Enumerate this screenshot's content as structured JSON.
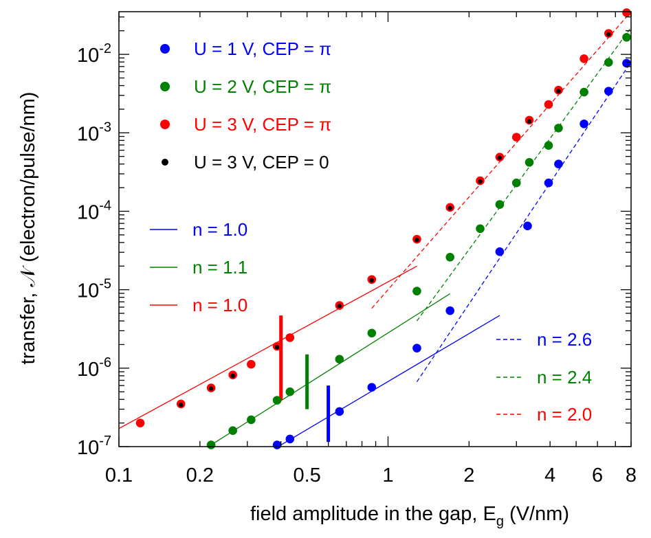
{
  "chart_data": {
    "type": "scatter",
    "xlabel": "field amplitude in the gap, E",
    "xlabel_sub": "g",
    "xlabel_unit": " (V/nm)",
    "ylabel": "transfer, 𝒩 (electron/pulse/nm)",
    "x_scale": "log",
    "y_scale": "log",
    "xlim": [
      0.1,
      8
    ],
    "ylim": [
      1e-07,
      0.035
    ],
    "grid": false,
    "legend_position": "top-left",
    "x_ticks": [
      {
        "value": 0.1,
        "label": "0.1"
      },
      {
        "value": 0.2,
        "label": "0.2"
      },
      {
        "value": 0.5,
        "label": "0.5"
      },
      {
        "value": 1,
        "label": "1"
      },
      {
        "value": 2,
        "label": "2"
      },
      {
        "value": 4,
        "label": "4"
      },
      {
        "value": 6,
        "label": "6"
      },
      {
        "value": 8,
        "label": "8"
      }
    ],
    "y_ticks": [
      {
        "value": 1e-07,
        "base": "10",
        "exp": "-7"
      },
      {
        "value": 1e-06,
        "base": "10",
        "exp": "-6"
      },
      {
        "value": 1e-05,
        "base": "10",
        "exp": "-5"
      },
      {
        "value": 0.0001,
        "base": "10",
        "exp": "-4"
      },
      {
        "value": 0.001,
        "base": "10",
        "exp": "-3"
      },
      {
        "value": 0.01,
        "base": "10",
        "exp": "-2"
      }
    ],
    "series": [
      {
        "name": "U = 1 V, CEP = π",
        "color": "#0000ff",
        "x": [
          0.387,
          0.432,
          0.66,
          0.87,
          1.28,
          1.7,
          2.6,
          3.3,
          3.95,
          4.3,
          5.35,
          6.6,
          7.7
        ],
        "y": [
          1.05e-07,
          1.25e-07,
          2.8e-07,
          5.7e-07,
          1.8e-06,
          5.4e-06,
          3.05e-05,
          6.5e-05,
          0.00023,
          0.0004,
          0.0013,
          0.0034,
          0.0077
        ]
      },
      {
        "name": "U = 2 V, CEP = π",
        "color": "#008000",
        "x": [
          0.22,
          0.265,
          0.31,
          0.387,
          0.432,
          0.66,
          0.87,
          1.28,
          1.7,
          2.2,
          2.6,
          3.0,
          3.35,
          3.95,
          4.3,
          5.35,
          6.6,
          7.7
        ],
        "y": [
          1.05e-07,
          1.6e-07,
          2.2e-07,
          3.9e-07,
          5e-07,
          1.3e-06,
          2.8e-06,
          9.6e-06,
          2.6e-05,
          6e-05,
          0.000122,
          0.00023,
          0.00042,
          0.00069,
          0.00115,
          0.0033,
          0.0079,
          0.0165
        ]
      },
      {
        "name": "U = 3 V, CEP = π",
        "color": "#ff0000",
        "x": [
          0.12,
          0.17,
          0.22,
          0.265,
          0.31,
          0.387,
          0.432,
          0.66,
          0.87,
          1.28,
          1.7,
          2.2,
          2.6,
          3.0,
          3.35,
          3.95,
          4.3,
          5.35,
          6.6,
          7.7
        ],
        "y": [
          2e-07,
          3.5e-07,
          5.6e-07,
          8.2e-07,
          1.12e-06,
          1.9e-06,
          2.45e-06,
          6.3e-06,
          1.35e-05,
          4.4e-05,
          0.000112,
          0.000245,
          0.00049,
          0.00088,
          0.00145,
          0.0023,
          0.0035,
          0.0088,
          0.0185,
          0.034
        ]
      },
      {
        "name": "U = 3 V, CEP = 0",
        "color": "#000000",
        "small": true,
        "x": [
          0.17,
          0.22,
          0.265,
          0.387,
          0.66,
          0.87,
          1.28,
          1.7,
          2.2,
          2.6,
          3.35,
          4.3,
          6.6
        ],
        "y": [
          3.4e-07,
          5.5e-07,
          8e-07,
          1.85e-06,
          6.2e-06,
          1.32e-05,
          4.3e-05,
          0.00011,
          0.00024,
          0.00048,
          0.0014,
          0.0034,
          0.018
        ]
      }
    ],
    "fits": [
      {
        "name": "n = 1.0",
        "color": "#0000ff",
        "style": "solid",
        "x": [
          0.4,
          2.6
        ],
        "y": [
          1.05e-07,
          4.7e-06
        ]
      },
      {
        "name": "n = 1.1",
        "color": "#008000",
        "style": "solid",
        "x": [
          0.22,
          1.7
        ],
        "y": [
          1.05e-07,
          8.9e-06
        ]
      },
      {
        "name": "n = 1.0",
        "color": "#ff0000",
        "style": "solid",
        "x": [
          0.1,
          1.28
        ],
        "y": [
          1.7e-07,
          2e-05
        ]
      },
      {
        "name": "n = 2.6",
        "color": "#0000ff",
        "style": "dashed",
        "x": [
          1.28,
          8.0
        ],
        "y": [
          6.7e-07,
          0.008
        ]
      },
      {
        "name": "n = 2.4",
        "color": "#008000",
        "style": "dashed",
        "x": [
          1.28,
          8.0
        ],
        "y": [
          4e-06,
          0.022
        ]
      },
      {
        "name": "n = 2.0",
        "color": "#ff0000",
        "style": "dashed",
        "x": [
          0.87,
          8.0
        ],
        "y": [
          5.8e-06,
          0.035
        ]
      }
    ],
    "threshold_markers": [
      {
        "color": "#ff0000",
        "x": 0.4,
        "y_low": 3.9e-07,
        "y_high": 4.7e-06
      },
      {
        "color": "#008000",
        "x": 0.5,
        "y_low": 3e-07,
        "y_high": 1.5e-06
      },
      {
        "color": "#0000ff",
        "x": 0.6,
        "y_low": 1.15e-07,
        "y_high": 6e-07
      }
    ]
  }
}
